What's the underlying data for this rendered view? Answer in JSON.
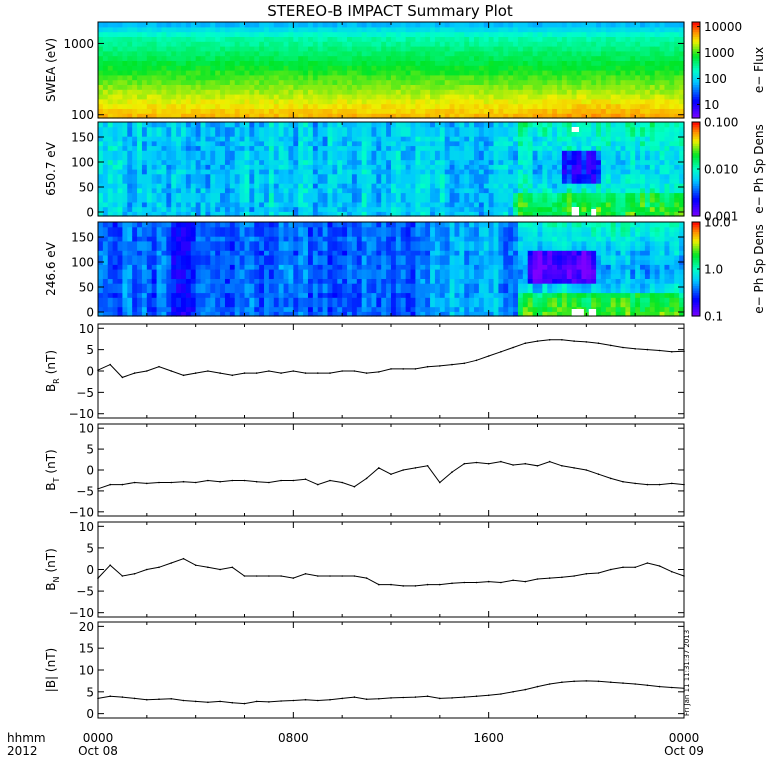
{
  "title": "STEREO-B IMPACT Summary Plot",
  "stamp": "Fri Jan 11 11:31:37 2013",
  "time_axis": {
    "corner_top": "hhmm",
    "corner_bottom": "2012",
    "ticks": [
      {
        "hhmm": "0000",
        "date": "Oct 08",
        "hour": 0
      },
      {
        "hhmm": "0800",
        "date": "",
        "hour": 8
      },
      {
        "hhmm": "1600",
        "date": "",
        "hour": 16
      },
      {
        "hhmm": "0000",
        "date": "Oct 09",
        "hour": 24
      }
    ]
  },
  "chart_data": [
    {
      "type": "heatmap",
      "ylabel": "SWEA (eV)",
      "yscale": "log",
      "ylim": [
        90,
        2000
      ],
      "yticks": [
        {
          "v": 100,
          "label": "100"
        },
        {
          "v": 1000,
          "label": "1000"
        }
      ],
      "colorbar": {
        "label": "e− Flux",
        "scale": "log",
        "range": [
          3,
          15000
        ],
        "ticks": [
          {
            "v": 10000,
            "label": "10000"
          },
          {
            "v": 1000,
            "label": "1000"
          },
          {
            "v": 100,
            "label": "100"
          },
          {
            "v": 10,
            "label": "10"
          }
        ]
      }
    },
    {
      "type": "heatmap",
      "ylabel": "650.7 eV",
      "ylim": [
        -8,
        180
      ],
      "yticks": [
        {
          "v": 0,
          "label": "0"
        },
        {
          "v": 50,
          "label": "50"
        },
        {
          "v": 100,
          "label": "100"
        },
        {
          "v": 150,
          "label": "150"
        }
      ],
      "colorbar": {
        "label": "e− Ph Sp Dens",
        "scale": "log",
        "range": [
          0.001,
          0.1
        ],
        "ticks": [
          {
            "v": 0.1,
            "label": "0.100"
          },
          {
            "v": 0.01,
            "label": "0.010"
          },
          {
            "v": 0.001,
            "label": "0.001"
          }
        ]
      }
    },
    {
      "type": "heatmap",
      "ylabel": "246.6 eV",
      "ylim": [
        -8,
        180
      ],
      "yticks": [
        {
          "v": 0,
          "label": "0"
        },
        {
          "v": 50,
          "label": "50"
        },
        {
          "v": 100,
          "label": "100"
        },
        {
          "v": 150,
          "label": "150"
        }
      ],
      "colorbar": {
        "label": "e− Ph Sp Dens",
        "scale": "log",
        "range": [
          0.1,
          10
        ],
        "ticks": [
          {
            "v": 10,
            "label": "10.0"
          },
          {
            "v": 1,
            "label": "1.0"
          },
          {
            "v": 0.1,
            "label": "0.1"
          }
        ]
      }
    },
    {
      "type": "line",
      "ylabel": "B",
      "ylabel_sub": "R",
      "ylabel_unit": "(nT)",
      "ylim": [
        -11,
        11
      ],
      "yticks": [
        {
          "v": -10,
          "label": "−10"
        },
        {
          "v": -5,
          "label": "−5"
        },
        {
          "v": 0,
          "label": "0"
        },
        {
          "v": 5,
          "label": "5"
        },
        {
          "v": 10,
          "label": "10"
        }
      ],
      "x": [
        0,
        0.5,
        1,
        1.5,
        2,
        2.5,
        3,
        3.5,
        4,
        4.5,
        5,
        5.5,
        6,
        6.5,
        7,
        7.5,
        8,
        8.5,
        9,
        9.5,
        10,
        10.5,
        11,
        11.5,
        12,
        12.5,
        13,
        13.5,
        14,
        14.5,
        15,
        15.5,
        16,
        16.5,
        17,
        17.5,
        18,
        18.5,
        19,
        19.5,
        20,
        20.5,
        21,
        21.5,
        22,
        22.5,
        23,
        23.5,
        24
      ],
      "y": [
        0.2,
        1.5,
        -1.5,
        -0.5,
        0,
        1,
        0,
        -1,
        -0.5,
        0,
        -0.5,
        -1,
        -0.5,
        -0.5,
        0,
        -0.5,
        0,
        -0.5,
        -0.5,
        -0.5,
        0,
        0,
        -0.5,
        -0.2,
        0.5,
        0.5,
        0.5,
        1.0,
        1.2,
        1.5,
        1.8,
        2.5,
        3.5,
        4.5,
        5.5,
        6.5,
        7.0,
        7.3,
        7.3,
        7.0,
        6.8,
        6.5,
        6.0,
        5.5,
        5.2,
        5.0,
        4.8,
        4.5,
        4.6
      ]
    },
    {
      "type": "line",
      "ylabel": "B",
      "ylabel_sub": "T",
      "ylabel_unit": "(nT)",
      "ylim": [
        -11,
        11
      ],
      "yticks": [
        {
          "v": -10,
          "label": "−10"
        },
        {
          "v": -5,
          "label": "−5"
        },
        {
          "v": 0,
          "label": "0"
        },
        {
          "v": 5,
          "label": "5"
        },
        {
          "v": 10,
          "label": "10"
        }
      ],
      "x": [
        0,
        0.5,
        1,
        1.5,
        2,
        2.5,
        3,
        3.5,
        4,
        4.5,
        5,
        5.5,
        6,
        6.5,
        7,
        7.5,
        8,
        8.5,
        9,
        9.5,
        10,
        10.5,
        11,
        11.5,
        12,
        12.5,
        13,
        13.5,
        14,
        14.5,
        15,
        15.5,
        16,
        16.5,
        17,
        17.5,
        18,
        18.5,
        19,
        19.5,
        20,
        20.5,
        21,
        21.5,
        22,
        22.5,
        23,
        23.5,
        24
      ],
      "y": [
        -4.5,
        -3.5,
        -3.5,
        -3,
        -3.2,
        -3,
        -3,
        -2.8,
        -3,
        -2.5,
        -2.8,
        -2.5,
        -2.5,
        -2.8,
        -3,
        -2.5,
        -2.5,
        -2.2,
        -3.5,
        -2.5,
        -3,
        -4.0,
        -2.0,
        0.5,
        -1,
        0,
        0.5,
        1.0,
        -3.0,
        -0.5,
        1.5,
        1.8,
        1.5,
        2.0,
        1.2,
        1.5,
        1.0,
        2.0,
        1.0,
        0.5,
        0.0,
        -1.0,
        -2.0,
        -2.8,
        -3.2,
        -3.5,
        -3.5,
        -3.2,
        -3.5
      ]
    },
    {
      "type": "line",
      "ylabel": "B",
      "ylabel_sub": "N",
      "ylabel_unit": "(nT)",
      "ylim": [
        -11,
        11
      ],
      "yticks": [
        {
          "v": -10,
          "label": "−10"
        },
        {
          "v": -5,
          "label": "−5"
        },
        {
          "v": 0,
          "label": "0"
        },
        {
          "v": 5,
          "label": "5"
        },
        {
          "v": 10,
          "label": "10"
        }
      ],
      "x": [
        0,
        0.5,
        1,
        1.5,
        2,
        2.5,
        3,
        3.5,
        4,
        4.5,
        5,
        5.5,
        6,
        6.5,
        7,
        7.5,
        8,
        8.5,
        9,
        9.5,
        10,
        10.5,
        11,
        11.5,
        12,
        12.5,
        13,
        13.5,
        14,
        14.5,
        15,
        15.5,
        16,
        16.5,
        17,
        17.5,
        18,
        18.5,
        19,
        19.5,
        20,
        20.5,
        21,
        21.5,
        22,
        22.5,
        23,
        23.5,
        24
      ],
      "y": [
        -2,
        1,
        -1.5,
        -1,
        0,
        0.5,
        1.5,
        2.5,
        1,
        0.5,
        0,
        0.5,
        -1.5,
        -1.5,
        -1.5,
        -1.5,
        -2,
        -1,
        -1.5,
        -1.5,
        -1.5,
        -1.5,
        -2,
        -3.5,
        -3.5,
        -3.8,
        -3.8,
        -3.5,
        -3.5,
        -3.2,
        -3.0,
        -3.0,
        -2.8,
        -3.0,
        -2.5,
        -2.8,
        -2.2,
        -2.0,
        -1.8,
        -1.5,
        -1.0,
        -0.8,
        0.0,
        0.5,
        0.5,
        1.5,
        0.8,
        -0.5,
        -1.5
      ]
    },
    {
      "type": "line",
      "ylabel": "|B| (nT)",
      "ylim": [
        -1,
        21
      ],
      "yticks": [
        {
          "v": 0,
          "label": "0"
        },
        {
          "v": 5,
          "label": "5"
        },
        {
          "v": 10,
          "label": "10"
        },
        {
          "v": 15,
          "label": "15"
        },
        {
          "v": 20,
          "label": "20"
        }
      ],
      "x": [
        0,
        0.5,
        1,
        1.5,
        2,
        2.5,
        3,
        3.5,
        4,
        4.5,
        5,
        5.5,
        6,
        6.5,
        7,
        7.5,
        8,
        8.5,
        9,
        9.5,
        10,
        10.5,
        11,
        11.5,
        12,
        12.5,
        13,
        13.5,
        14,
        14.5,
        15,
        15.5,
        16,
        16.5,
        17,
        17.5,
        18,
        18.5,
        19,
        19.5,
        20,
        20.5,
        21,
        21.5,
        22,
        22.5,
        23,
        23.5,
        24
      ],
      "y": [
        3.5,
        4.0,
        3.8,
        3.5,
        3.2,
        3.3,
        3.4,
        3.0,
        2.8,
        2.6,
        2.8,
        2.5,
        2.3,
        2.8,
        2.7,
        2.9,
        3.0,
        3.2,
        3.0,
        3.2,
        3.5,
        3.8,
        3.3,
        3.4,
        3.6,
        3.7,
        3.8,
        4.0,
        3.5,
        3.6,
        3.8,
        4.0,
        4.2,
        4.5,
        5.0,
        5.5,
        6.2,
        6.8,
        7.2,
        7.4,
        7.5,
        7.4,
        7.2,
        7.0,
        6.8,
        6.5,
        6.2,
        6.0,
        5.8
      ]
    }
  ]
}
